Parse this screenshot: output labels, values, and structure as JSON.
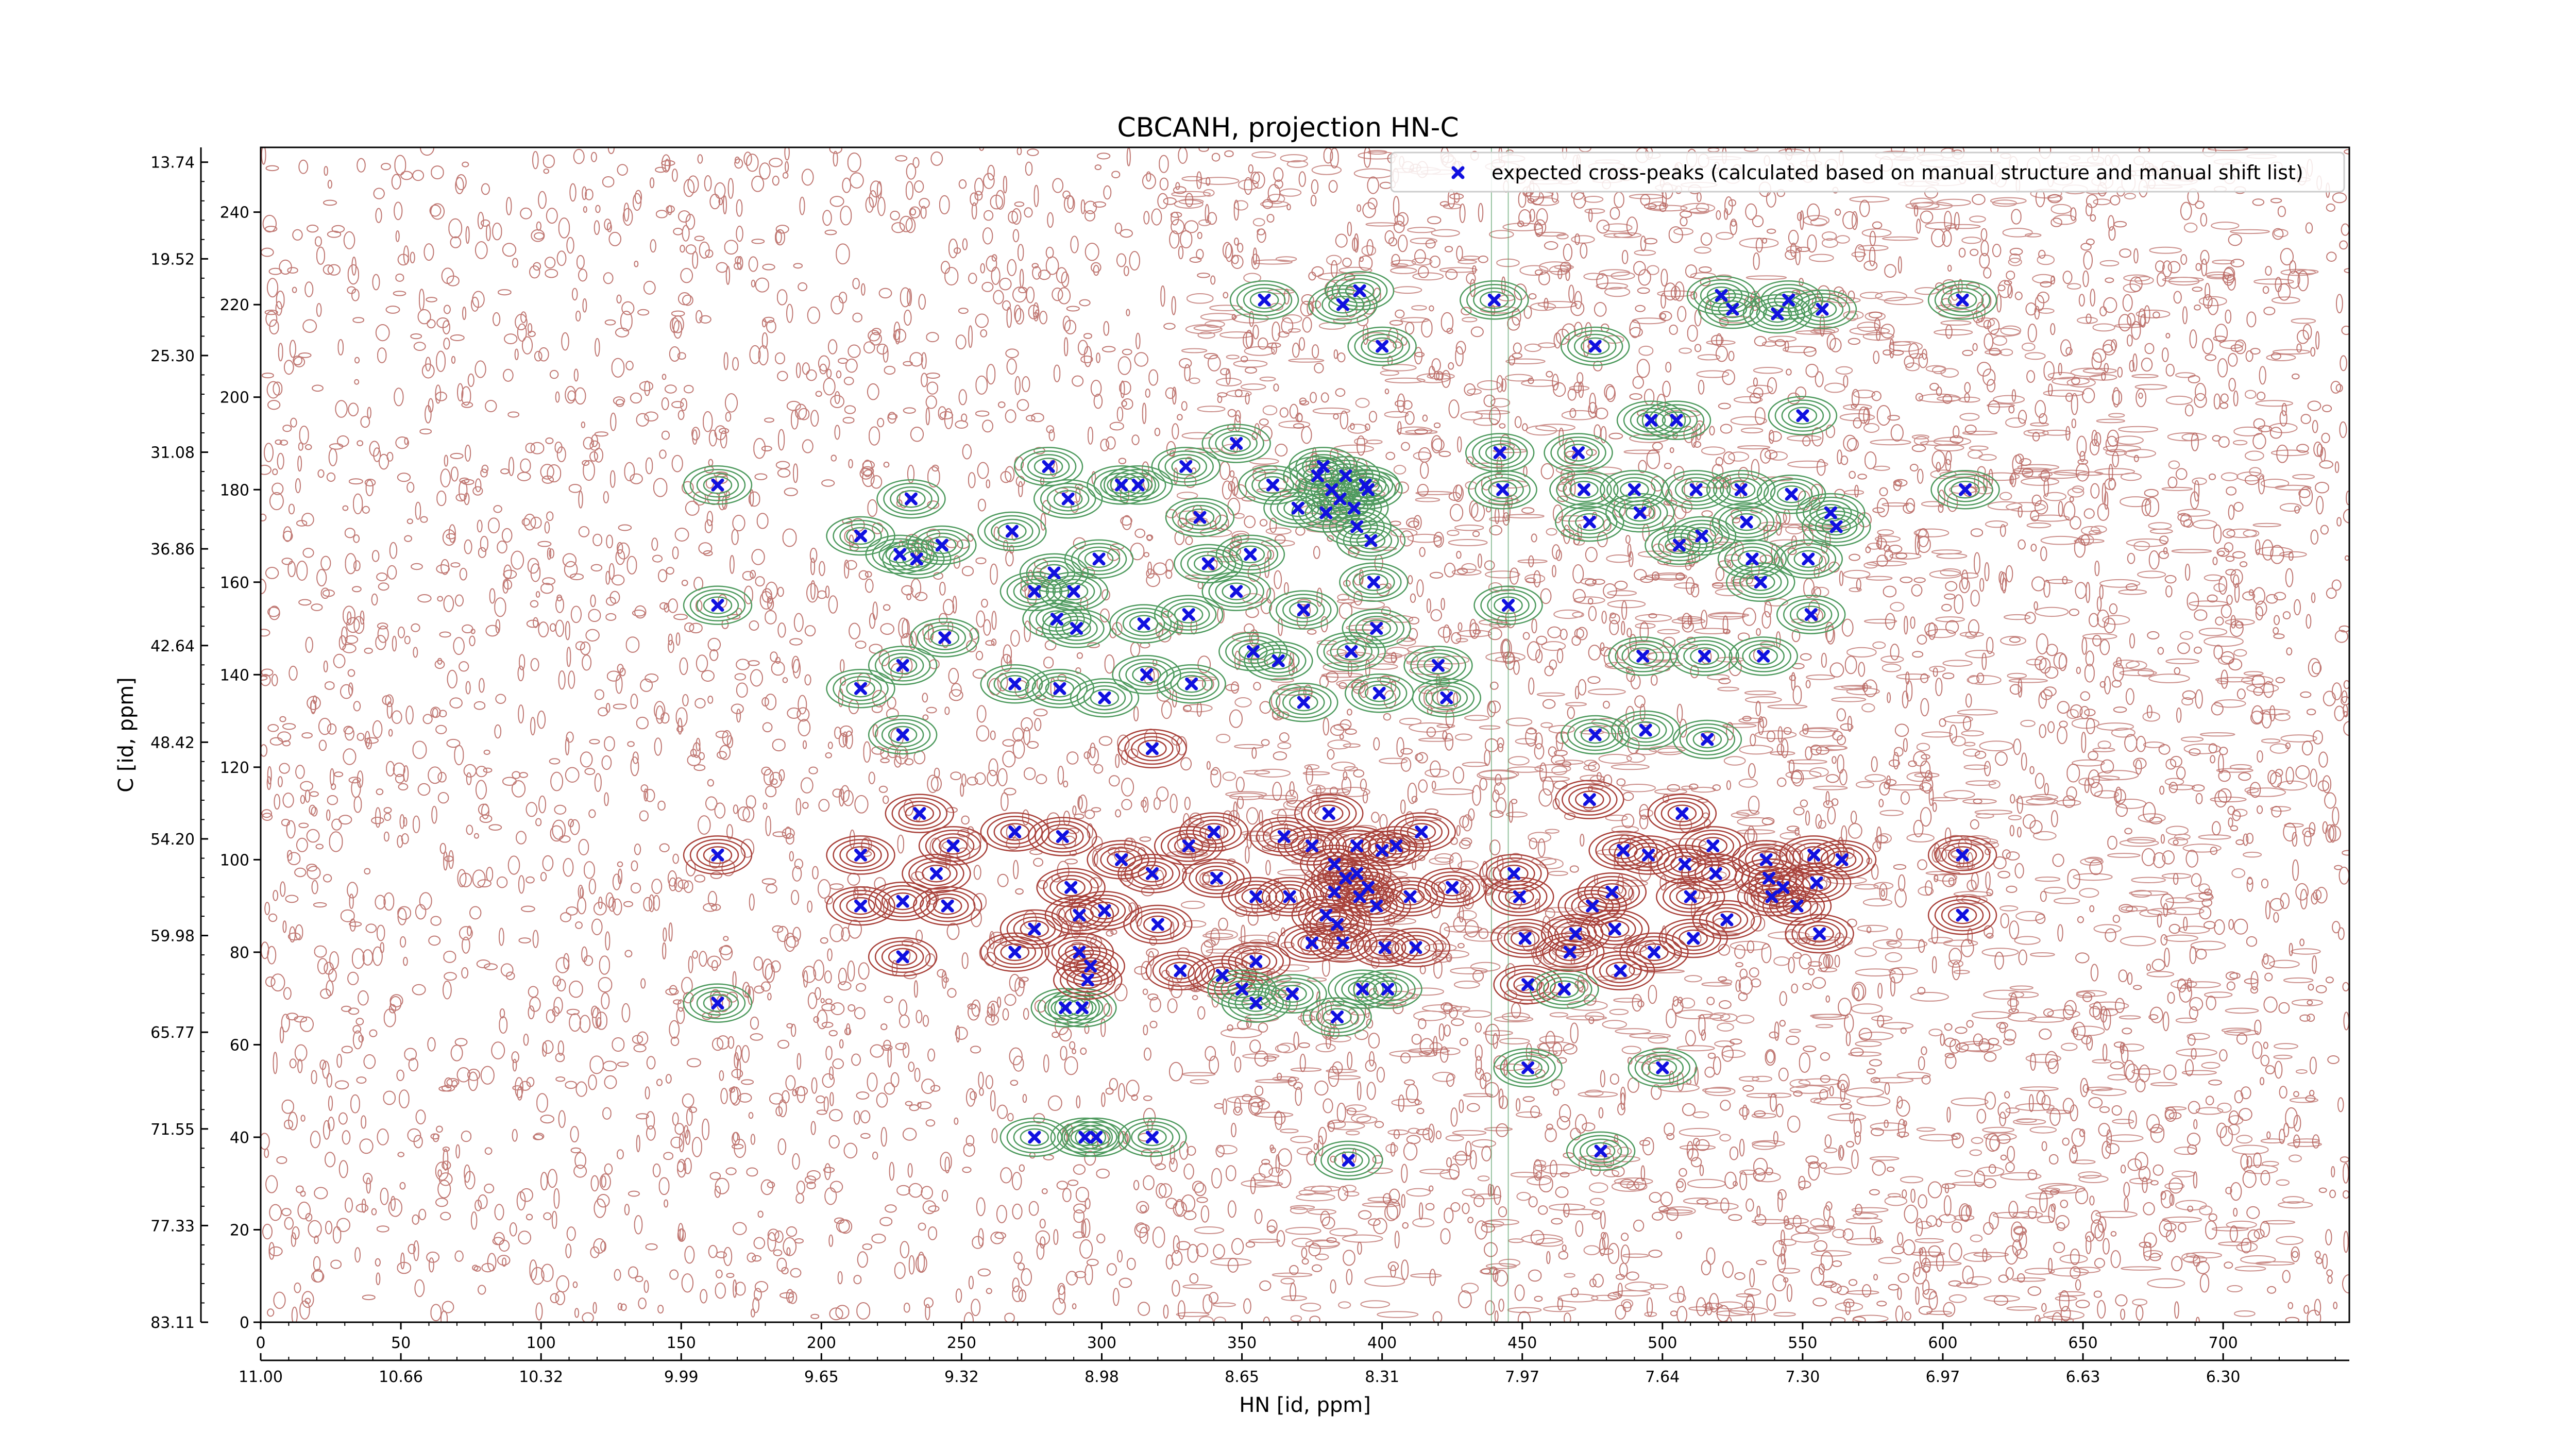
{
  "chart_data": {
    "type": "scatter",
    "title": "CBCANH, projection HN-C",
    "xlabel": "HN [id, ppm]",
    "ylabel": "C [id, ppm]",
    "xlim": [
      0,
      745
    ],
    "ylim": [
      0,
      254
    ],
    "grid": false,
    "legend_position": "top-right",
    "x_ticks": [
      0,
      50,
      100,
      150,
      200,
      250,
      300,
      350,
      400,
      450,
      500,
      550,
      600,
      650,
      700
    ],
    "x_ticks_ppm": [
      {
        "v": 0,
        "label": "11.00"
      },
      {
        "v": 50,
        "label": "10.66"
      },
      {
        "v": 100,
        "label": "10.32"
      },
      {
        "v": 150,
        "label": "9.99"
      },
      {
        "v": 200,
        "label": "9.65"
      },
      {
        "v": 250,
        "label": "9.32"
      },
      {
        "v": 300,
        "label": "8.98"
      },
      {
        "v": 350,
        "label": "8.65"
      },
      {
        "v": 400,
        "label": "8.31"
      },
      {
        "v": 450,
        "label": "7.97"
      },
      {
        "v": 500,
        "label": "7.64"
      },
      {
        "v": 550,
        "label": "7.30"
      },
      {
        "v": 600,
        "label": "6.97"
      },
      {
        "v": 650,
        "label": "6.63"
      },
      {
        "v": 700,
        "label": "6.30"
      }
    ],
    "y_ticks": [
      0,
      20,
      40,
      60,
      80,
      100,
      120,
      140,
      160,
      180,
      200,
      220,
      240
    ],
    "y_ticks_ppm": [
      {
        "v": 0,
        "label": "83.11"
      },
      {
        "v": 20.9,
        "label": "77.33"
      },
      {
        "v": 41.8,
        "label": "71.55"
      },
      {
        "v": 62.7,
        "label": "65.77"
      },
      {
        "v": 83.6,
        "label": "59.98"
      },
      {
        "v": 104.5,
        "label": "54.20"
      },
      {
        "v": 125.4,
        "label": "48.42"
      },
      {
        "v": 146.3,
        "label": "42.64"
      },
      {
        "v": 167.2,
        "label": "36.86"
      },
      {
        "v": 188.1,
        "label": "31.08"
      },
      {
        "v": 209,
        "label": "25.30"
      },
      {
        "v": 229.9,
        "label": "19.52"
      },
      {
        "v": 250.8,
        "label": "13.74"
      }
    ],
    "colors": {
      "noise_contour": "#b5605a",
      "positive_contour": "#4e9a5e",
      "negative_contour": "#a8413a",
      "expected_marker": "#1010e0"
    },
    "series": [
      {
        "name": "expected cross-peaks (calculated based on manual structure and manual shift list)",
        "marker": "x",
        "points": [
          [
            163,
            181
          ],
          [
            163,
            155
          ],
          [
            163,
            69
          ],
          [
            163,
            101
          ],
          [
            214,
            170
          ],
          [
            214,
            137
          ],
          [
            214,
            101
          ],
          [
            214,
            90
          ],
          [
            228,
            166
          ],
          [
            229,
            142
          ],
          [
            229,
            127
          ],
          [
            229,
            91
          ],
          [
            229,
            79
          ],
          [
            232,
            178
          ],
          [
            234,
            165
          ],
          [
            235,
            110
          ],
          [
            241,
            97
          ],
          [
            244,
            148
          ],
          [
            247,
            103
          ],
          [
            245,
            90
          ],
          [
            243,
            168
          ],
          [
            268,
            171
          ],
          [
            269,
            138
          ],
          [
            269,
            106
          ],
          [
            269,
            80
          ],
          [
            276,
            158
          ],
          [
            276,
            85
          ],
          [
            276,
            40
          ],
          [
            281,
            185
          ],
          [
            283,
            162
          ],
          [
            284,
            152
          ],
          [
            285,
            137
          ],
          [
            286,
            105
          ],
          [
            289,
            94
          ],
          [
            287,
            68
          ],
          [
            288,
            178
          ],
          [
            290,
            158
          ],
          [
            291,
            150
          ],
          [
            292,
            88
          ],
          [
            292,
            80
          ],
          [
            293,
            68
          ],
          [
            294,
            40
          ],
          [
            295,
            74
          ],
          [
            296,
            77
          ],
          [
            298,
            40
          ],
          [
            299,
            165
          ],
          [
            301,
            135
          ],
          [
            301,
            89
          ],
          [
            307,
            181
          ],
          [
            307,
            100
          ],
          [
            313,
            181
          ],
          [
            315,
            151
          ],
          [
            316,
            140
          ],
          [
            318,
            124
          ],
          [
            320,
            86
          ],
          [
            318,
            40
          ],
          [
            318,
            97
          ],
          [
            330,
            185
          ],
          [
            331,
            153
          ],
          [
            332,
            138
          ],
          [
            331,
            103
          ],
          [
            328,
            76
          ],
          [
            335,
            174
          ],
          [
            338,
            164
          ],
          [
            340,
            106
          ],
          [
            341,
            96
          ],
          [
            343,
            75
          ],
          [
            348,
            190
          ],
          [
            348,
            158
          ],
          [
            353,
            166
          ],
          [
            354,
            145
          ],
          [
            355,
            92
          ],
          [
            355,
            78
          ],
          [
            355,
            69
          ],
          [
            350,
            72
          ],
          [
            358,
            221
          ],
          [
            361,
            181
          ],
          [
            363,
            143
          ],
          [
            365,
            105
          ],
          [
            367,
            92
          ],
          [
            368,
            71
          ],
          [
            370,
            176
          ],
          [
            372,
            154
          ],
          [
            375,
            103
          ],
          [
            375,
            82
          ],
          [
            379,
            185
          ],
          [
            380,
            175
          ],
          [
            381,
            110
          ],
          [
            383,
            93
          ],
          [
            384,
            66
          ],
          [
            386,
            82
          ],
          [
            389,
            145
          ],
          [
            391,
            103
          ],
          [
            392,
            92
          ],
          [
            393,
            72
          ],
          [
            372,
            134
          ],
          [
            388,
            35
          ],
          [
            395,
            180
          ],
          [
            396,
            169
          ],
          [
            397,
            160
          ],
          [
            398,
            150
          ],
          [
            399,
            136
          ],
          [
            400,
            102
          ],
          [
            401,
            81
          ],
          [
            402,
            72
          ],
          [
            377,
            183
          ],
          [
            385,
            178
          ],
          [
            390,
            176
          ],
          [
            394,
            181
          ],
          [
            382,
            180
          ],
          [
            387,
            183
          ],
          [
            391,
            172
          ],
          [
            383,
            99
          ],
          [
            387,
            96
          ],
          [
            391,
            97
          ],
          [
            395,
            94
          ],
          [
            398,
            90
          ],
          [
            380,
            88
          ],
          [
            384,
            86
          ],
          [
            392,
            223
          ],
          [
            386,
            220
          ],
          [
            400,
            211
          ],
          [
            405,
            103
          ],
          [
            410,
            92
          ],
          [
            412,
            81
          ],
          [
            414,
            106
          ],
          [
            420,
            142
          ],
          [
            423,
            135
          ],
          [
            425,
            94
          ],
          [
            440,
            221
          ],
          [
            442,
            188
          ],
          [
            443,
            180
          ],
          [
            445,
            155
          ],
          [
            447,
            97
          ],
          [
            449,
            92
          ],
          [
            451,
            83
          ],
          [
            452,
            73
          ],
          [
            452,
            55
          ],
          [
            465,
            72
          ],
          [
            467,
            80
          ],
          [
            469,
            84
          ],
          [
            470,
            188
          ],
          [
            472,
            180
          ],
          [
            474,
            173
          ],
          [
            474,
            113
          ],
          [
            475,
            90
          ],
          [
            476,
            211
          ],
          [
            476,
            127
          ],
          [
            478,
            37
          ],
          [
            482,
            93
          ],
          [
            483,
            85
          ],
          [
            485,
            76
          ],
          [
            486,
            102
          ],
          [
            490,
            180
          ],
          [
            492,
            175
          ],
          [
            493,
            144
          ],
          [
            494,
            128
          ],
          [
            495,
            101
          ],
          [
            496,
            195
          ],
          [
            497,
            80
          ],
          [
            500,
            55
          ],
          [
            505,
            195
          ],
          [
            506,
            168
          ],
          [
            507,
            110
          ],
          [
            508,
            99
          ],
          [
            510,
            92
          ],
          [
            511,
            83
          ],
          [
            512,
            180
          ],
          [
            514,
            170
          ],
          [
            515,
            144
          ],
          [
            516,
            126
          ],
          [
            518,
            103
          ],
          [
            519,
            97
          ],
          [
            521,
            222
          ],
          [
            523,
            87
          ],
          [
            525,
            219
          ],
          [
            528,
            180
          ],
          [
            530,
            173
          ],
          [
            532,
            165
          ],
          [
            535,
            160
          ],
          [
            536,
            144
          ],
          [
            537,
            100
          ],
          [
            538,
            96
          ],
          [
            539,
            92
          ],
          [
            541,
            218
          ],
          [
            543,
            94
          ],
          [
            545,
            221
          ],
          [
            546,
            179
          ],
          [
            548,
            90
          ],
          [
            550,
            196
          ],
          [
            552,
            165
          ],
          [
            553,
            153
          ],
          [
            554,
            101
          ],
          [
            555,
            95
          ],
          [
            556,
            84
          ],
          [
            557,
            219
          ],
          [
            560,
            175
          ],
          [
            562,
            172
          ],
          [
            564,
            100
          ],
          [
            607,
            221
          ],
          [
            607,
            101
          ],
          [
            607,
            88
          ],
          [
            608,
            180
          ]
        ]
      }
    ]
  }
}
